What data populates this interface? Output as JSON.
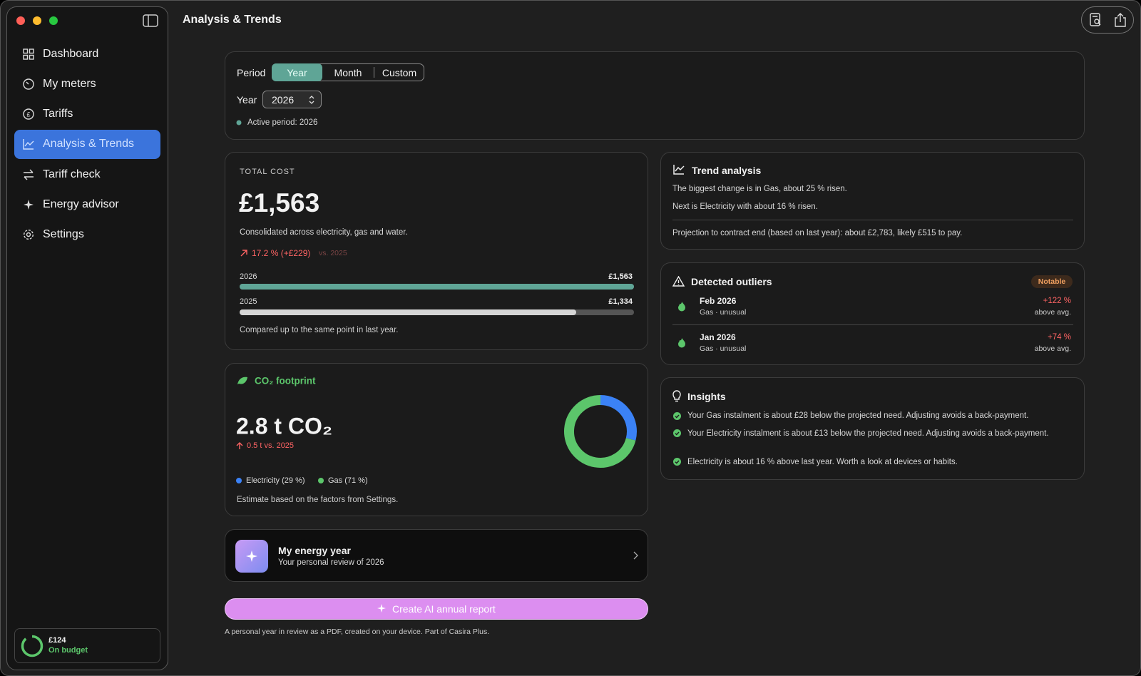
{
  "window": {
    "title": "Analysis & Trends"
  },
  "sidebar": {
    "items": [
      "Dashboard",
      "My meters",
      "Tariffs",
      "Analysis & Trends",
      "Tariff check",
      "Energy advisor",
      "Settings"
    ],
    "active": 3,
    "budget": {
      "amount": "£124",
      "status": "On budget"
    }
  },
  "period": {
    "label": "Period",
    "options": [
      "Year",
      "Month",
      "Custom"
    ],
    "selected": 0,
    "year_label": "Year",
    "year": "2026",
    "active": "Active period: 2026"
  },
  "total_cost": {
    "label": "TOTAL COST",
    "amount": "£1,563",
    "description": "Consolidated across electricity, gas and water.",
    "change": "17.2 % (+£229)",
    "change_ref": "vs. 2025",
    "bars": [
      {
        "year": "2026",
        "label": "£1,563",
        "value": 1563,
        "color": "#5fa596"
      },
      {
        "year": "2025",
        "label": "£1,334",
        "value": 1334,
        "color": "#d6d6d6"
      }
    ],
    "note": "Compared up to the same point in last year."
  },
  "co2": {
    "title": "CO₂ footprint",
    "amount": "2.8 t CO₂",
    "change": "0.5 t vs. 2025",
    "series": [
      {
        "name": "Electricity (29 %)",
        "value": 29,
        "color": "#3b82f6"
      },
      {
        "name": "Gas (71 %)",
        "value": 71,
        "color": "#5cc66b"
      }
    ],
    "note": "Estimate based on the factors from Settings."
  },
  "energy_year": {
    "title": "My energy year",
    "subtitle": "Your personal review of 2026"
  },
  "report": {
    "button": "Create AI annual report",
    "note": "A personal year in review as a PDF, created on your device. Part of Casira Plus."
  },
  "trend": {
    "title": "Trend analysis",
    "lines": [
      "The biggest change is in Gas, about 25 % risen.",
      "Next is Electricity with about 16 % risen.",
      "Projection to contract end (based on last year): about £2,783, likely £515 to pay."
    ]
  },
  "outliers": {
    "title": "Detected outliers",
    "badge": "Notable",
    "items": [
      {
        "month": "Feb 2026",
        "detail": "Gas · unusual",
        "change": "+122 %",
        "note": "above avg."
      },
      {
        "month": "Jan 2026",
        "detail": "Gas · unusual",
        "change": "+74 %",
        "note": "above avg."
      }
    ]
  },
  "insights": {
    "title": "Insights",
    "items": [
      "Your Gas instalment is about £28 below the projected need. Adjusting avoids a back-payment.",
      "Your Electricity instalment is about £13 below the projected need. Adjusting avoids a back-payment.",
      "Electricity is about 16 % above last year. Worth a look at devices or habits."
    ]
  }
}
